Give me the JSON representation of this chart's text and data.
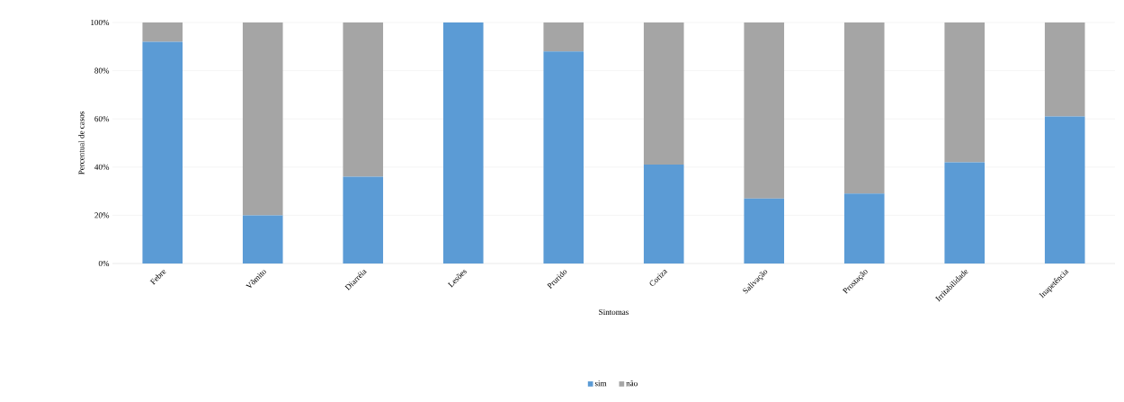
{
  "chart_data": {
    "type": "bar",
    "stacked": true,
    "xlabel": "Sintomas",
    "ylabel": "Percentual de casos",
    "categories": [
      "Febre",
      "Vômito",
      "Diarréia",
      "Lesões",
      "Prurido",
      "Coriza",
      "Salivação",
      "Prostação",
      "Irritabilidade",
      "Inapetência"
    ],
    "series": [
      {
        "name": "sim",
        "color": "#5b9bd5",
        "values": [
          92,
          20,
          36,
          100,
          88,
          41,
          27,
          29,
          42,
          61
        ]
      },
      {
        "name": "não",
        "color": "#a5a5a5",
        "values": [
          8,
          80,
          64,
          0,
          12,
          59,
          73,
          71,
          58,
          39
        ]
      }
    ],
    "ylim": [
      0,
      100
    ],
    "yticks": [
      {
        "value": 0,
        "label": "0%"
      },
      {
        "value": 20,
        "label": "20%"
      },
      {
        "value": 40,
        "label": "40%"
      },
      {
        "value": 60,
        "label": "60%"
      },
      {
        "value": 80,
        "label": "80%"
      },
      {
        "value": 100,
        "label": "100%"
      }
    ],
    "grid": "y",
    "legend": "bottom"
  }
}
